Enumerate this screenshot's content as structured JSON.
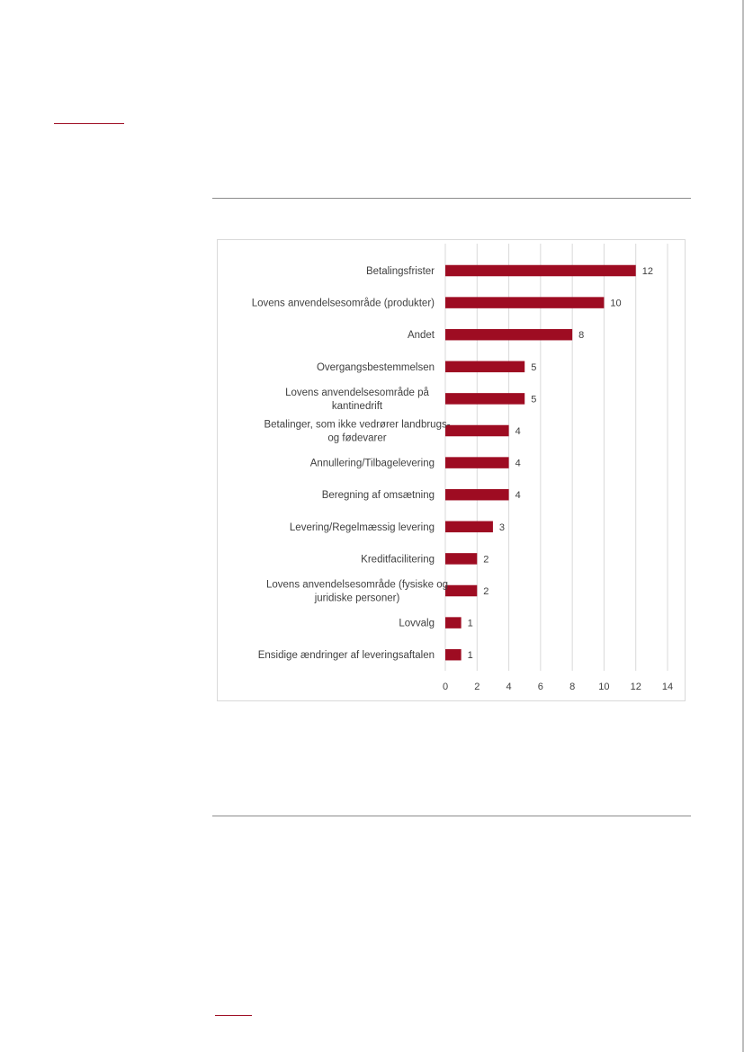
{
  "colors": {
    "bar": "#9e0c22",
    "accent": "#9e0c22",
    "grid": "#d9d9d9",
    "text": "#404040"
  },
  "chart_data": {
    "type": "bar",
    "orientation": "horizontal",
    "categories": [
      "Betalingsfrister",
      "Lovens anvendelsesområde (produkter)",
      "Andet",
      "Overgangsbestemmelsen",
      "Lovens anvendelsesområde på kantinedrift",
      "Betalinger, som ikke vedrører landbrugs- og fødevarer",
      "Annullering/Tilbagelevering",
      "Beregning af omsætning",
      "Levering/Regelmæssig levering",
      "Kreditfacilitering",
      "Lovens anvendelsesområde (fysiske og juridiske personer)",
      "Lovvalg",
      "Ensidige ændringer af leveringsaftalen"
    ],
    "category_lines": [
      [
        "Betalingsfrister"
      ],
      [
        "Lovens anvendelsesområde (produkter)"
      ],
      [
        "Andet"
      ],
      [
        "Overgangsbestemmelsen"
      ],
      [
        "Lovens anvendelsesområde på",
        "kantinedrift"
      ],
      [
        "Betalinger, som ikke vedrører landbrugs-",
        "og fødevarer"
      ],
      [
        "Annullering/Tilbagelevering"
      ],
      [
        "Beregning af omsætning"
      ],
      [
        "Levering/Regelmæssig levering"
      ],
      [
        "Kreditfacilitering"
      ],
      [
        "Lovens anvendelsesområde (fysiske og",
        "juridiske personer)"
      ],
      [
        "Lovvalg"
      ],
      [
        "Ensidige ændringer af leveringsaftalen"
      ]
    ],
    "values": [
      12,
      10,
      8,
      5,
      5,
      4,
      4,
      4,
      3,
      2,
      2,
      1,
      1
    ],
    "xlim": [
      0,
      14
    ],
    "xticks": [
      0,
      2,
      4,
      6,
      8,
      10,
      12,
      14
    ],
    "grid": true,
    "data_labels": true,
    "title": "",
    "xlabel": "",
    "ylabel": ""
  }
}
